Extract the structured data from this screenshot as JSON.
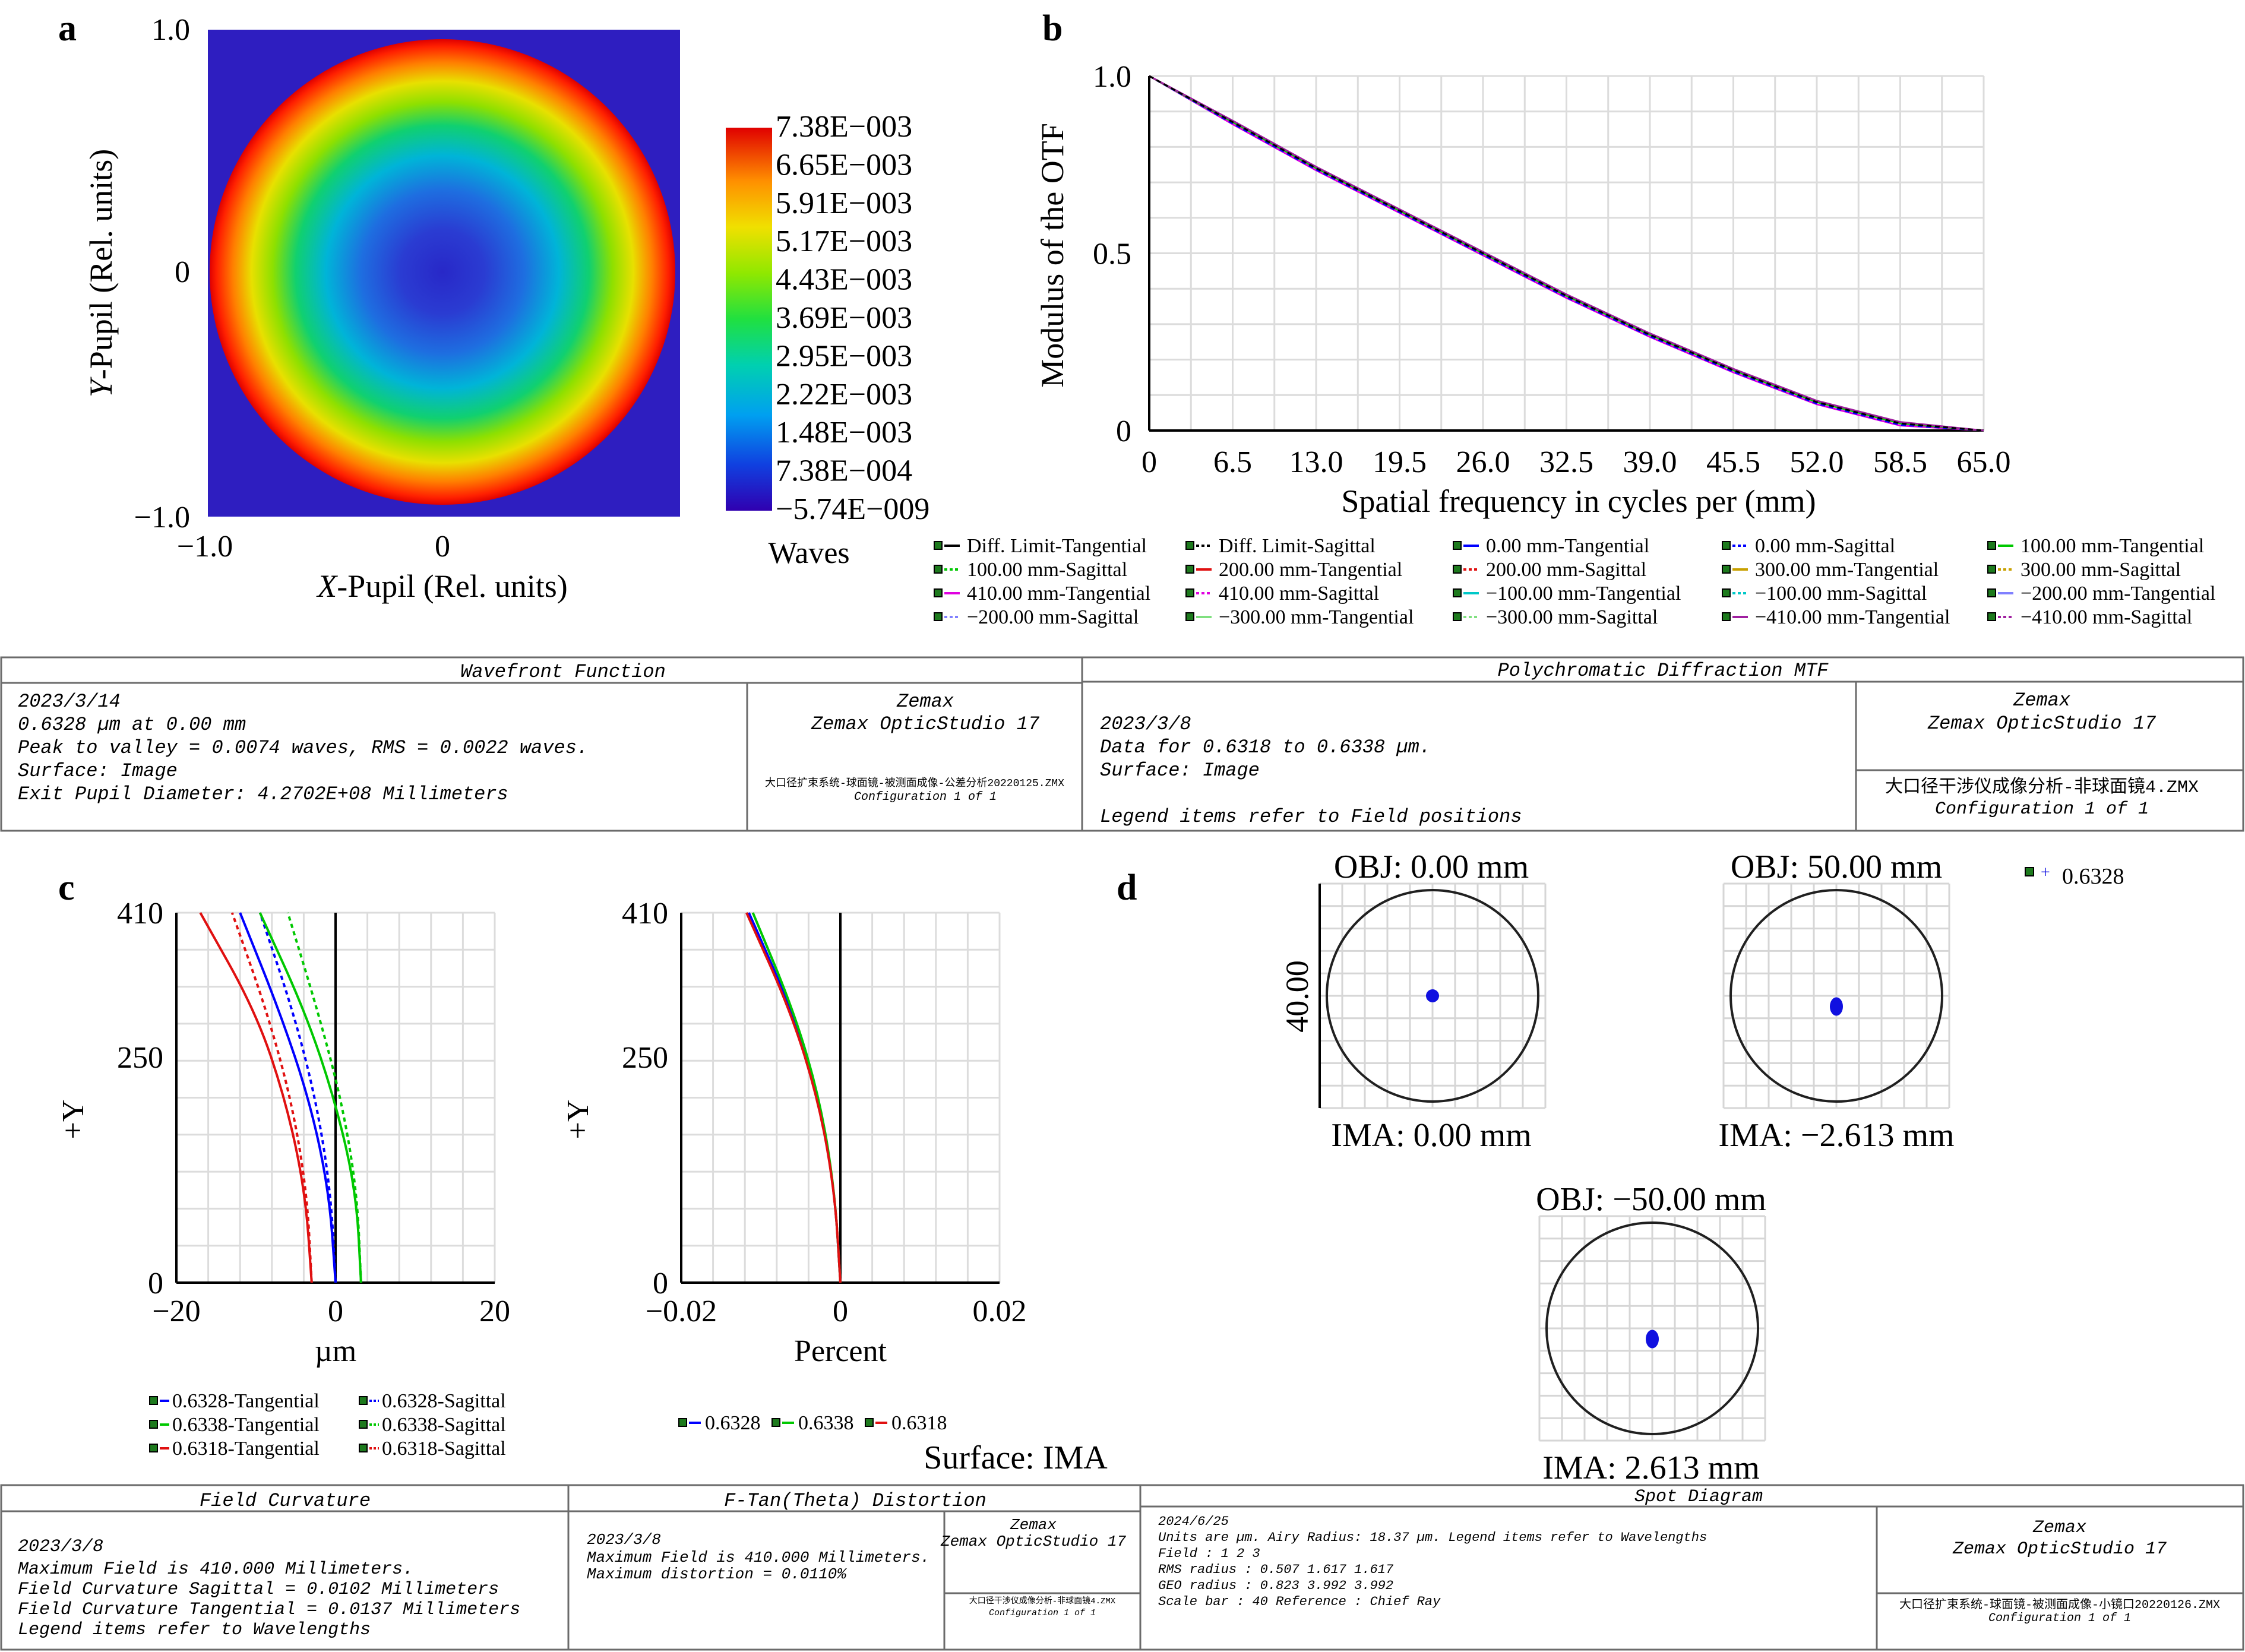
{
  "panels": {
    "a": "a",
    "b": "b",
    "c": "c",
    "d": "d"
  },
  "colors": {
    "tangential_blue": "#0000ff",
    "green": "#00c800",
    "red": "#e01010",
    "purple": "#a020a0",
    "spot": "#1010e0"
  },
  "wavefront": {
    "x_label_var": "X",
    "x_label_rest": "-Pupil (Rel. units)",
    "y_label_var": "Y",
    "y_label_rest": "-Pupil (Rel. units)",
    "x_ticks": [
      "−1.0",
      "0"
    ],
    "y_ticks": [
      "1.0",
      "0",
      "−1.0"
    ],
    "colorbar_labels": [
      "7.38E−003",
      "6.65E−003",
      "5.91E−003",
      "5.17E−003",
      "4.43E−003",
      "3.69E−003",
      "2.95E−003",
      "2.22E−003",
      "1.48E−003",
      "7.38E−004",
      "−5.74E−009"
    ],
    "colorbar_unit": "Waves",
    "title_block": {
      "title": "Wavefront Function",
      "lines": [
        "2023/3/14",
        "0.6328 µm at 0.00 mm",
        "Peak to valley = 0.0074 waves, RMS = 0.0022 waves.",
        "Surface: Image",
        "Exit Pupil Diameter: 4.2702E+08 Millimeters"
      ],
      "brand": "Zemax",
      "product": "Zemax OpticStudio 17",
      "file": "大口径扩束系统-球面镜-被测面成像-公差分析20220125.ZMX",
      "config": "Configuration 1 of 1"
    }
  },
  "mtf": {
    "y_label": "Modulus of the OTF",
    "x_label": "Spatial frequency in cycles per (mm)",
    "x_ticks": [
      "0",
      "6.5",
      "13.0",
      "19.5",
      "26.0",
      "32.5",
      "39.0",
      "45.5",
      "52.0",
      "58.5",
      "65.0"
    ],
    "y_ticks": [
      "1.0",
      "0.5",
      "0"
    ],
    "legend": [
      {
        "label": "Diff. Limit-Tangential",
        "color": "#000000",
        "dash": false
      },
      {
        "label": "Diff. Limit-Sagittal",
        "color": "#000000",
        "dash": true
      },
      {
        "label": "0.00 mm-Tangential",
        "color": "#0000ff",
        "dash": false
      },
      {
        "label": "0.00 mm-Sagittal",
        "color": "#0000ff",
        "dash": true
      },
      {
        "label": "100.00 mm-Tangential",
        "color": "#00c800",
        "dash": false
      },
      {
        "label": "100.00 mm-Sagittal",
        "color": "#00c800",
        "dash": true
      },
      {
        "label": "200.00 mm-Tangential",
        "color": "#e01010",
        "dash": false
      },
      {
        "label": "200.00 mm-Sagittal",
        "color": "#e01010",
        "dash": true
      },
      {
        "label": "300.00 mm-Tangential",
        "color": "#c8a000",
        "dash": false
      },
      {
        "label": "300.00 mm-Sagittal",
        "color": "#c8a000",
        "dash": true
      },
      {
        "label": "410.00 mm-Tangential",
        "color": "#e000e0",
        "dash": false
      },
      {
        "label": "410.00 mm-Sagittal",
        "color": "#e000e0",
        "dash": true
      },
      {
        "label": "−100.00 mm-Tangential",
        "color": "#00c8c8",
        "dash": false
      },
      {
        "label": "−100.00 mm-Sagittal",
        "color": "#00c8c8",
        "dash": true
      },
      {
        "label": "−200.00 mm-Tangential",
        "color": "#8080ff",
        "dash": false
      },
      {
        "label": "−200.00 mm-Sagittal",
        "color": "#8080ff",
        "dash": true
      },
      {
        "label": "−300.00 mm-Tangential",
        "color": "#80e080",
        "dash": false
      },
      {
        "label": "−300.00 mm-Sagittal",
        "color": "#80e080",
        "dash": true
      },
      {
        "label": "−410.00 mm-Tangential",
        "color": "#a020a0",
        "dash": false
      },
      {
        "label": "−410.00 mm-Sagittal",
        "color": "#a020a0",
        "dash": true
      }
    ],
    "title_block": {
      "title": "Polychromatic Diffraction MTF",
      "lines": [
        "2023/3/8",
        "Data for 0.6318 to 0.6338 µm.",
        "Surface: Image"
      ],
      "legend_note": "Legend items refer to Field positions",
      "brand": "Zemax",
      "product": "Zemax OpticStudio 17",
      "file": "大口径干涉仪成像分析-非球面镜4.ZMX",
      "config": "Configuration 1 of 1"
    }
  },
  "field_curvature": {
    "x_label": "µm",
    "y_label": "+Y",
    "x_ticks": [
      "−20",
      "0",
      "20"
    ],
    "y_ticks": [
      "410",
      "250",
      "0"
    ],
    "legend": [
      "0.6328-Tangential",
      "0.6328-Sagittal",
      "0.6338-Tangential",
      "0.6338-Sagittal",
      "0.6318-Tangential",
      "0.6318-Sagittal"
    ],
    "title_block": {
      "title": "Field Curvature",
      "lines": [
        "2023/3/8",
        "Maximum Field is 410.000 Millimeters.",
        "Field Curvature Sagittal = 0.0102 Millimeters",
        "Field Curvature Tangential = 0.0137 Millimeters",
        "Legend items refer to Wavelengths"
      ]
    }
  },
  "distortion": {
    "x_label": "Percent",
    "y_label": "+Y",
    "x_ticks": [
      "−0.02",
      "0",
      "0.02"
    ],
    "y_ticks": [
      "410",
      "250",
      "0"
    ],
    "legend": [
      "0.6328",
      "0.6338",
      "0.6318"
    ],
    "title_block": {
      "title": "F-Tan(Theta) Distortion",
      "lines": [
        "2023/3/8",
        "Maximum Field is 410.000 Millimeters.",
        "Maximum distortion = 0.0110%"
      ],
      "brand": "Zemax",
      "product": "Zemax OpticStudio 17",
      "file": "大口径干涉仪成像分析-非球面镜4.ZMX",
      "config": "Configuration 1 of 1"
    }
  },
  "spot": {
    "spots": [
      {
        "obj": "OBJ: 0.00 mm",
        "ima": "IMA: 0.00 mm"
      },
      {
        "obj": "OBJ: 50.00 mm",
        "ima": "IMA: −2.613 mm"
      },
      {
        "obj": "OBJ: −50.00 mm",
        "ima": "IMA: 2.613 mm"
      }
    ],
    "scale_label": "40.00",
    "legend": "0.6328",
    "surface": "Surface: IMA",
    "title_block": {
      "title": "Spot Diagram",
      "lines": [
        "2024/6/25",
        "Units are µm.        Airy Radius: 18.37 µm. Legend items refer to Wavelengths",
        "Field     :          1           2          3",
        "RMS radius :     0.507      1.617      1.617",
        "GEO radius :     0.823      3.992      3.992",
        "Scale bar  : 40       Reference  : Chief Ray"
      ],
      "brand": "Zemax",
      "product": "Zemax OpticStudio 17",
      "file": "大口径扩束系统-球面镜-被测面成像-小镜口20220126.ZMX",
      "config": "Configuration 1 of 1"
    }
  },
  "chart_data": [
    {
      "type": "heatmap",
      "title": "Wavefront Function",
      "xlabel": "X-Pupil (Rel. units)",
      "ylabel": "Y-Pupil (Rel. units)",
      "xlim": [
        -1.0,
        1.0
      ],
      "ylim": [
        -1.0,
        1.0
      ],
      "colorbar": {
        "min": -5.74e-09,
        "max": 0.00738,
        "unit": "Waves"
      },
      "peak_to_valley": 0.0074,
      "rms": 0.0022
    },
    {
      "type": "line",
      "title": "Polychromatic Diffraction MTF",
      "xlabel": "Spatial frequency in cycles per (mm)",
      "ylabel": "Modulus of the OTF",
      "xlim": [
        0,
        65.0
      ],
      "ylim": [
        0,
        1.0
      ],
      "grid": true,
      "legend": "bottom",
      "x": [
        0,
        6.5,
        13.0,
        19.5,
        26.0,
        32.5,
        39.0,
        45.5,
        52.0,
        58.5,
        65.0
      ],
      "series": [
        {
          "name": "Diff. Limit-Tangential",
          "values": [
            1.0,
            0.87,
            0.74,
            0.62,
            0.5,
            0.38,
            0.27,
            0.17,
            0.08,
            0.02,
            0.0
          ]
        }
      ]
    },
    {
      "type": "line",
      "title": "Field Curvature",
      "xlabel": "µm",
      "ylabel": "+Y",
      "xlim": [
        -20,
        20
      ],
      "ylim": [
        0,
        410
      ],
      "grid": true,
      "y": [
        0,
        100,
        200,
        300,
        410
      ],
      "series": [
        {
          "name": "0.6328-Tangential",
          "values": [
            0.0,
            -0.8,
            -3.2,
            -7.0,
            -12.0
          ]
        },
        {
          "name": "0.6328-Sagittal",
          "values": [
            0.0,
            -0.6,
            -2.4,
            -5.3,
            -9.5
          ]
        },
        {
          "name": "0.6338-Tangential",
          "values": [
            3.2,
            2.6,
            0.0,
            -3.8,
            -9.5
          ]
        },
        {
          "name": "0.6338-Sagittal",
          "values": [
            3.2,
            2.7,
            0.8,
            -2.2,
            -6.0
          ]
        },
        {
          "name": "0.6318-Tangential",
          "values": [
            -3.0,
            -3.8,
            -6.2,
            -10.0,
            -17.0
          ]
        },
        {
          "name": "0.6318-Sagittal",
          "values": [
            -3.0,
            -3.6,
            -5.5,
            -8.6,
            -13.0
          ]
        }
      ]
    },
    {
      "type": "line",
      "title": "F-Tan(Theta) Distortion",
      "xlabel": "Percent",
      "ylabel": "+Y",
      "xlim": [
        -0.02,
        0.02
      ],
      "ylim": [
        0,
        410
      ],
      "grid": true,
      "y": [
        0,
        100,
        200,
        300,
        410
      ],
      "series": [
        {
          "name": "0.6328",
          "values": [
            0.0,
            -0.0007,
            -0.0026,
            -0.006,
            -0.0115
          ]
        },
        {
          "name": "0.6338",
          "values": [
            0.0,
            -0.0007,
            -0.0025,
            -0.0058,
            -0.011
          ]
        },
        {
          "name": "0.6318",
          "values": [
            0.0,
            -0.0007,
            -0.0027,
            -0.0062,
            -0.0118
          ]
        }
      ]
    },
    {
      "type": "scatter",
      "title": "Spot Diagram",
      "fields": [
        "OBJ: 0.00 mm",
        "OBJ: 50.00 mm",
        "OBJ: −50.00 mm"
      ],
      "rms_radius_um": [
        0.507,
        1.617,
        1.617
      ],
      "geo_radius_um": [
        0.823,
        3.992,
        3.992
      ],
      "airy_radius_um": 18.37,
      "scale_bar_um": 40
    }
  ]
}
